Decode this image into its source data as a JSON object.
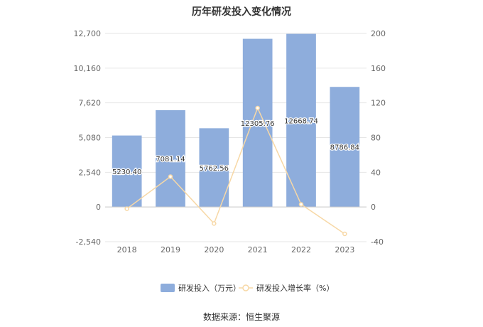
{
  "chart_data": {
    "type": "bar",
    "title": "历年研发投入变化情况",
    "categories": [
      "2018",
      "2019",
      "2020",
      "2021",
      "2022",
      "2023"
    ],
    "series": [
      {
        "name": "研发投入（万元）",
        "type": "bar",
        "axis": "left",
        "values": [
          5230.4,
          7081.14,
          5762.56,
          12305.76,
          12668.74,
          8786.84
        ],
        "labels": [
          "5230.40",
          "7081.14",
          "5762.56",
          "12305.76",
          "12668.74",
          "8786.84"
        ]
      },
      {
        "name": "研发投入增长率（%）",
        "type": "line",
        "axis": "right",
        "values": [
          -2,
          35,
          -19,
          114,
          3,
          -31
        ]
      }
    ],
    "y_left": {
      "ticks": [
        "12,700",
        "10,160",
        "7,620",
        "5,080",
        "2,540",
        "0",
        "-2,540"
      ],
      "min": -2540,
      "max": 12700
    },
    "y_right": {
      "ticks": [
        "200",
        "160",
        "120",
        "80",
        "40",
        "0",
        "-40"
      ],
      "min": -40,
      "max": 200
    },
    "colors": {
      "bar": "#8eaddc",
      "line": "#f7d8a6",
      "grid": "#e6e6e6",
      "axis_text": "#666666"
    },
    "legend": {
      "position": "bottom"
    }
  },
  "source_text": "数据来源：恒生聚源"
}
